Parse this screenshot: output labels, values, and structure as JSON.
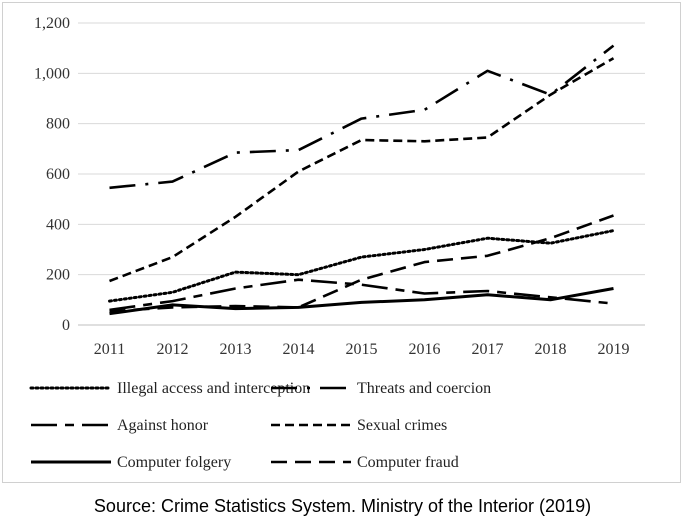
{
  "chart_data": {
    "type": "line",
    "title": "",
    "xlabel": "",
    "ylabel": "",
    "x": [
      "2011",
      "2012",
      "2013",
      "2014",
      "2015",
      "2016",
      "2017",
      "2018",
      "2019"
    ],
    "ylim": [
      0,
      1200
    ],
    "yticks": [
      0,
      200,
      400,
      600,
      800,
      1000,
      1200
    ],
    "ytick_labels": [
      "0",
      "200",
      "400",
      "600",
      "800",
      "1,000",
      "1,200"
    ],
    "grid": "horizontal",
    "legend_position": "bottom",
    "series": [
      {
        "name": "Illegal access and interception",
        "style": "dotted",
        "values": [
          95,
          130,
          210,
          200,
          270,
          300,
          345,
          325,
          375
        ]
      },
      {
        "name": "Threats and coercion",
        "style": "long-dash-dot",
        "values": [
          545,
          570,
          685,
          695,
          820,
          855,
          1010,
          915,
          1110
        ]
      },
      {
        "name": "Against honor",
        "style": "long-dash-short-dash",
        "values": [
          60,
          95,
          145,
          180,
          160,
          125,
          135,
          110,
          85
        ]
      },
      {
        "name": "Sexual crimes",
        "style": "short-dash",
        "values": [
          175,
          270,
          430,
          610,
          735,
          730,
          745,
          915,
          1060
        ]
      },
      {
        "name": "Computer folgery",
        "style": "solid",
        "values": [
          45,
          80,
          65,
          70,
          90,
          100,
          120,
          100,
          145
        ]
      },
      {
        "name": "Computer fraud",
        "style": "dash",
        "values": [
          55,
          70,
          75,
          70,
          180,
          250,
          275,
          345,
          435
        ]
      }
    ]
  },
  "caption": "Source: Crime Statistics System. Ministry of the Interior (2019)"
}
